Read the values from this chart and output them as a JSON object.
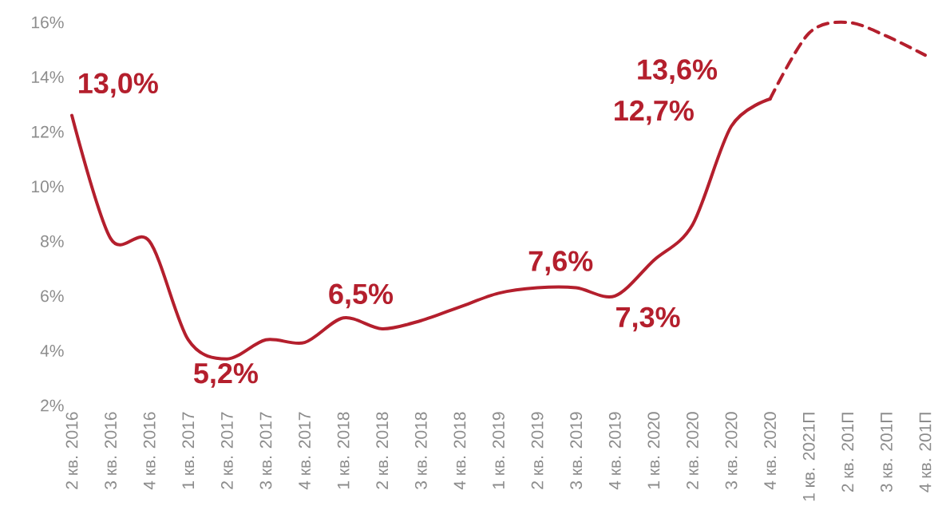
{
  "chart_data": {
    "type": "line",
    "categories": [
      "2 кв. 2016",
      "3 кв. 2016",
      "4 кв. 2016",
      "1 кв. 2017",
      "2 кв. 2017",
      "3 кв. 2017",
      "4 кв. 2017",
      "1 кв. 2018",
      "2 кв. 2018",
      "3 кв. 2018",
      "4 кв. 2018",
      "1 кв. 2019",
      "2 кв. 2019",
      "3 кв. 2019",
      "4 кв. 2019",
      "1 кв. 2020",
      "2 кв. 2020",
      "3 кв. 2020",
      "4 кв. 2020",
      "1 кв. 2021П",
      "2 кв. 201П",
      "3 кв. 201П",
      "4 кв. 201П"
    ],
    "series": [
      {
        "color": "#b41f2d",
        "line_style": "solid",
        "values": [
          12.6,
          8.1,
          8.0,
          4.4,
          3.7,
          4.4,
          4.3,
          5.2,
          4.8,
          5.1,
          5.6,
          6.1,
          6.3,
          6.3,
          6.0,
          7.3,
          8.6,
          12.2,
          13.2,
          null,
          null,
          null,
          null
        ]
      },
      {
        "color": "#b41f2d",
        "line_style": "dashed",
        "values": [
          null,
          null,
          null,
          null,
          null,
          null,
          null,
          null,
          null,
          null,
          null,
          null,
          null,
          null,
          null,
          null,
          null,
          null,
          13.2,
          15.6,
          16.0,
          15.5,
          14.8
        ]
      }
    ],
    "ylim": [
      2,
      16
    ],
    "yticks": [
      {
        "value": 2,
        "label": "2%"
      },
      {
        "value": 4,
        "label": "4%"
      },
      {
        "value": 6,
        "label": "6%"
      },
      {
        "value": 8,
        "label": "8%"
      },
      {
        "value": 10,
        "label": "10%"
      },
      {
        "value": 12,
        "label": "12%"
      },
      {
        "value": 14,
        "label": "14%"
      },
      {
        "value": 16,
        "label": "16%"
      }
    ],
    "grid": false,
    "marker": "none",
    "annotations": [
      "13,0%",
      "5,2%",
      "6,5%",
      "7,6%",
      "7,3%",
      "12,7%",
      "13,6%"
    ]
  }
}
